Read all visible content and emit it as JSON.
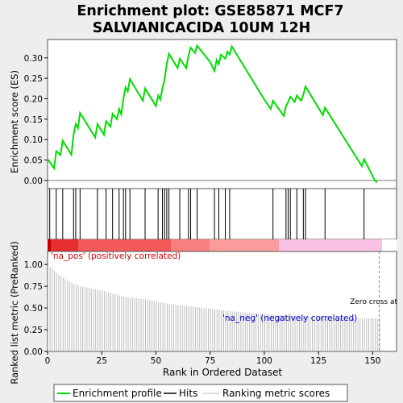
{
  "title_line1": "Enrichment plot: GSE85871 MCF7",
  "title_line2": "SALVIANICACIDA 10UM 12H",
  "chart_data": {
    "type": "line",
    "xlabel": "Rank in Ordered Dataset",
    "ylabel_top": "Enrichment score (ES)",
    "ylabel_bottom": "Ranked list metric (PreRanked)",
    "x_ticks": [
      "0",
      "25",
      "50",
      "75",
      "100",
      "125",
      "150"
    ],
    "x_tick_values": [
      0,
      25,
      50,
      75,
      100,
      125,
      150
    ],
    "xlim": [
      0,
      161
    ],
    "es_ylim": [
      -0.02,
      0.345
    ],
    "es_ticks": [
      "0.00",
      "0.05",
      "0.10",
      "0.15",
      "0.20",
      "0.25",
      "0.30"
    ],
    "es_tick_values": [
      0.0,
      0.05,
      0.1,
      0.15,
      0.2,
      0.25,
      0.3
    ],
    "metric_ylim": [
      0.0,
      1.15
    ],
    "metric_ticks": [
      "0.00",
      "0.25",
      "0.50",
      "0.75",
      "1.00"
    ],
    "metric_tick_values": [
      0.0,
      0.25,
      0.5,
      0.75,
      1.0
    ],
    "zero_cross_label": "Zero cross at",
    "zero_cross_x": 153,
    "pos_label": "'na_pos' (positively correlated)",
    "neg_label": "'na_neg' (negatively correlated)",
    "legend": [
      "Enrichment profile",
      "Hits",
      "Ranking metric scores"
    ],
    "series_color": "#00dd00",
    "hits": [
      1,
      4,
      7,
      12,
      13,
      15,
      23,
      27,
      30,
      33,
      35,
      36,
      38,
      45,
      51,
      53,
      54,
      55,
      56,
      61,
      65,
      66,
      69,
      77,
      79,
      82,
      84,
      104,
      110,
      111,
      112,
      115,
      118,
      119,
      128,
      146
    ],
    "es_points": [
      [
        0,
        0.052
      ],
      [
        1,
        0.045
      ],
      [
        3,
        0.03
      ],
      [
        4,
        0.072
      ],
      [
        6,
        0.062
      ],
      [
        7,
        0.097
      ],
      [
        11,
        0.063
      ],
      [
        12,
        0.113
      ],
      [
        13,
        0.138
      ],
      [
        14,
        0.128
      ],
      [
        15,
        0.165
      ],
      [
        22,
        0.105
      ],
      [
        23,
        0.138
      ],
      [
        26,
        0.112
      ],
      [
        27,
        0.145
      ],
      [
        29,
        0.132
      ],
      [
        30,
        0.163
      ],
      [
        32,
        0.15
      ],
      [
        33,
        0.175
      ],
      [
        34,
        0.162
      ],
      [
        35,
        0.2
      ],
      [
        36,
        0.228
      ],
      [
        37,
        0.218
      ],
      [
        38,
        0.248
      ],
      [
        44,
        0.195
      ],
      [
        45,
        0.225
      ],
      [
        50,
        0.182
      ],
      [
        51,
        0.208
      ],
      [
        52,
        0.198
      ],
      [
        53,
        0.225
      ],
      [
        54,
        0.248
      ],
      [
        55,
        0.285
      ],
      [
        56,
        0.31
      ],
      [
        60,
        0.275
      ],
      [
        61,
        0.298
      ],
      [
        64,
        0.275
      ],
      [
        65,
        0.305
      ],
      [
        66,
        0.325
      ],
      [
        68,
        0.312
      ],
      [
        69,
        0.33
      ],
      [
        75,
        0.29
      ],
      [
        77,
        0.268
      ],
      [
        78,
        0.295
      ],
      [
        79,
        0.285
      ],
      [
        80,
        0.308
      ],
      [
        82,
        0.298
      ],
      [
        83,
        0.315
      ],
      [
        84,
        0.308
      ],
      [
        85,
        0.328
      ],
      [
        100,
        0.198
      ],
      [
        103,
        0.175
      ],
      [
        104,
        0.195
      ],
      [
        109,
        0.158
      ],
      [
        110,
        0.182
      ],
      [
        111,
        0.192
      ],
      [
        112,
        0.205
      ],
      [
        114,
        0.192
      ],
      [
        115,
        0.208
      ],
      [
        117,
        0.195
      ],
      [
        118,
        0.21
      ],
      [
        119,
        0.23
      ],
      [
        127,
        0.16
      ],
      [
        128,
        0.178
      ],
      [
        145,
        0.035
      ],
      [
        146,
        0.052
      ],
      [
        151,
        0.0
      ],
      [
        152,
        -0.005
      ]
    ],
    "metric_points": [
      [
        0,
        1.0
      ],
      [
        2,
        0.95
      ],
      [
        5,
        0.88
      ],
      [
        10,
        0.8
      ],
      [
        15,
        0.75
      ],
      [
        25,
        0.7
      ],
      [
        35,
        0.63
      ],
      [
        45,
        0.6
      ],
      [
        55,
        0.55
      ],
      [
        65,
        0.52
      ],
      [
        75,
        0.49
      ],
      [
        85,
        0.46
      ],
      [
        95,
        0.44
      ],
      [
        105,
        0.42
      ],
      [
        115,
        0.41
      ],
      [
        125,
        0.4
      ],
      [
        135,
        0.39
      ],
      [
        145,
        0.38
      ],
      [
        153,
        0.38
      ]
    ]
  }
}
